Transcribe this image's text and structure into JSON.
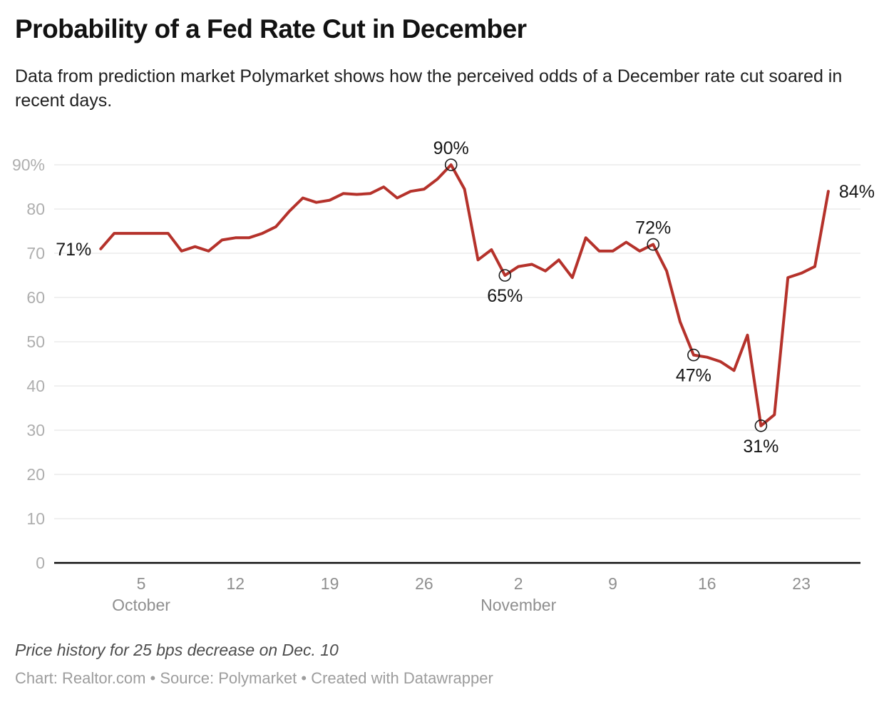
{
  "header": {
    "title": "Probability of a Fed Rate Cut in December",
    "subtitle": "Data from prediction market Polymarket shows how the perceived odds of a December rate cut soared in recent days."
  },
  "footer": {
    "note": "Price history for 25 bps decrease on Dec. 10",
    "byline": "Chart: Realtor.com • Source: Polymarket • Created with Datawrapper"
  },
  "chart_data": {
    "type": "line",
    "title": "Probability of a Fed Rate Cut in December",
    "xlabel": "",
    "ylabel": "",
    "ylim": [
      0,
      90
    ],
    "grid": true,
    "legend": "none",
    "line_color": "#b5322b",
    "marker_stroke_color": "#1a1a1a",
    "series": [
      {
        "name": "Price history for 25 bps decrease on Dec. 10",
        "x": [
          "Oct 2",
          "Oct 3",
          "Oct 4",
          "Oct 5",
          "Oct 6",
          "Oct 7",
          "Oct 8",
          "Oct 9",
          "Oct 10",
          "Oct 11",
          "Oct 12",
          "Oct 13",
          "Oct 14",
          "Oct 15",
          "Oct 16",
          "Oct 17",
          "Oct 18",
          "Oct 19",
          "Oct 20",
          "Oct 21",
          "Oct 22",
          "Oct 23",
          "Oct 24",
          "Oct 25",
          "Oct 26",
          "Oct 27",
          "Oct 28",
          "Oct 29",
          "Oct 30",
          "Oct 31",
          "Nov 1",
          "Nov 2",
          "Nov 3",
          "Nov 4",
          "Nov 5",
          "Nov 6",
          "Nov 7",
          "Nov 8",
          "Nov 9",
          "Nov 10",
          "Nov 11",
          "Nov 12",
          "Nov 13",
          "Nov 14",
          "Nov 15",
          "Nov 16",
          "Nov 17",
          "Nov 18",
          "Nov 19",
          "Nov 20",
          "Nov 21",
          "Nov 22",
          "Nov 23",
          "Nov 24",
          "Nov 25"
        ],
        "values": [
          71,
          74.5,
          74.5,
          74.5,
          74.5,
          74.5,
          70.5,
          71.5,
          70.5,
          73,
          73.5,
          73.5,
          74.5,
          76,
          79.5,
          82.5,
          81.5,
          82,
          83.5,
          83.3,
          83.5,
          85,
          82.5,
          84,
          84.5,
          86.8,
          90,
          84.5,
          68.5,
          70.8,
          65,
          67,
          67.5,
          66,
          68.5,
          64.5,
          73.5,
          70.5,
          70.5,
          72.5,
          70.5,
          72,
          66,
          54.5,
          47,
          46.5,
          45.5,
          43.5,
          51.5,
          31,
          33.5,
          64.5,
          65.5,
          67,
          84
        ]
      }
    ],
    "y_ticks": [
      {
        "value": 0,
        "label": "0"
      },
      {
        "value": 10,
        "label": "10"
      },
      {
        "value": 20,
        "label": "20"
      },
      {
        "value": 30,
        "label": "30"
      },
      {
        "value": 40,
        "label": "40"
      },
      {
        "value": 50,
        "label": "50"
      },
      {
        "value": 60,
        "label": "60"
      },
      {
        "value": 70,
        "label": "70"
      },
      {
        "value": 80,
        "label": "80"
      },
      {
        "value": 90,
        "label": "90%"
      }
    ],
    "x_ticks": [
      {
        "index": 3,
        "label": "5"
      },
      {
        "index": 10,
        "label": "12"
      },
      {
        "index": 17,
        "label": "19"
      },
      {
        "index": 24,
        "label": "26"
      },
      {
        "index": 31,
        "label": "2"
      },
      {
        "index": 38,
        "label": "9"
      },
      {
        "index": 45,
        "label": "16"
      },
      {
        "index": 52,
        "label": "23"
      }
    ],
    "month_labels": [
      {
        "index": 3,
        "label": "October"
      },
      {
        "index": 31,
        "label": "November"
      }
    ],
    "annotations": [
      {
        "index": 0,
        "value": 71,
        "label": "71%",
        "marker": false,
        "placement": "left"
      },
      {
        "index": 26,
        "value": 90,
        "label": "90%",
        "marker": true,
        "placement": "above"
      },
      {
        "index": 30,
        "value": 65,
        "label": "65%",
        "marker": true,
        "placement": "below"
      },
      {
        "index": 41,
        "value": 72,
        "label": "72%",
        "marker": true,
        "placement": "above"
      },
      {
        "index": 44,
        "value": 47,
        "label": "47%",
        "marker": true,
        "placement": "below"
      },
      {
        "index": 49,
        "value": 31,
        "label": "31%",
        "marker": true,
        "placement": "below"
      },
      {
        "index": 54,
        "value": 84,
        "label": "84%",
        "marker": false,
        "placement": "right"
      }
    ]
  }
}
